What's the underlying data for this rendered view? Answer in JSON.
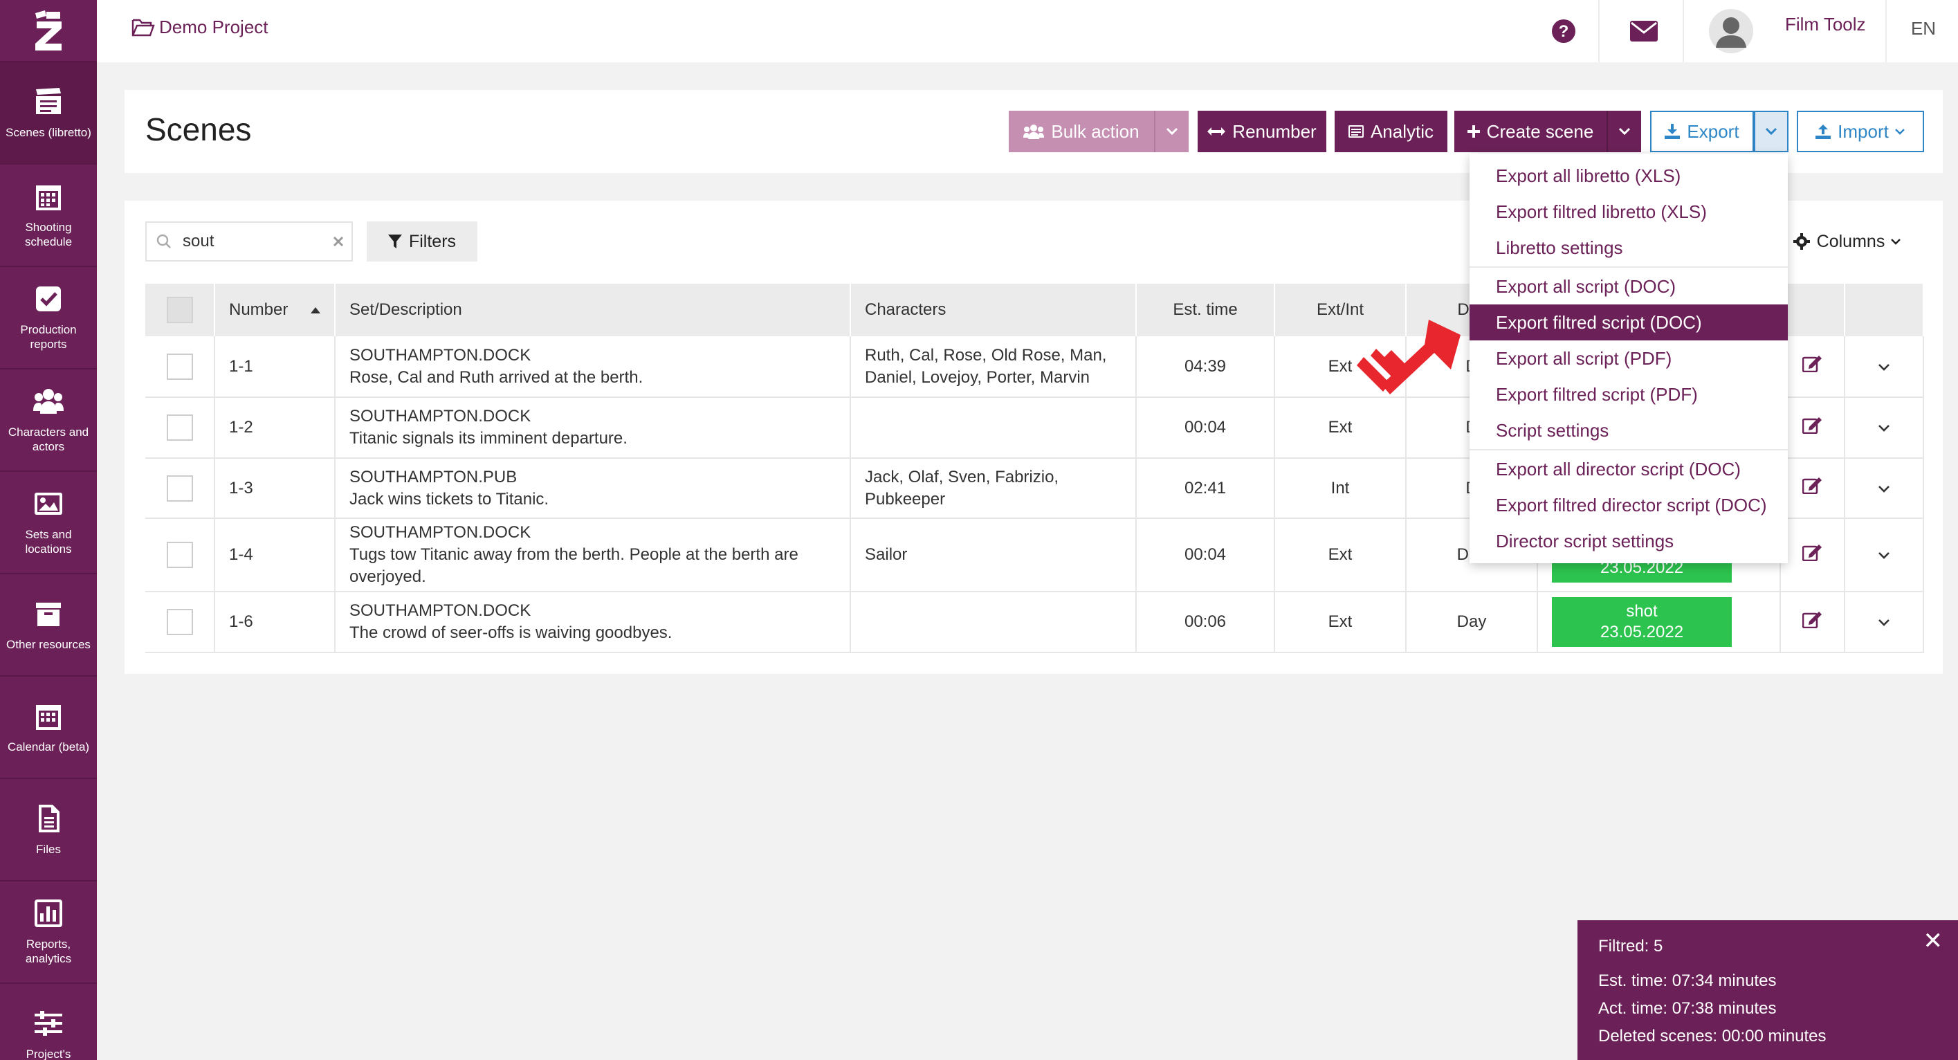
{
  "sidebar": {
    "logo": "Z",
    "items": [
      {
        "label": "Scenes (libretto)",
        "icon": "clapperboard-icon",
        "active": true
      },
      {
        "label": "Shooting schedule",
        "icon": "calendar-icon"
      },
      {
        "label": "Production reports",
        "icon": "checkbox-icon"
      },
      {
        "label": "Characters and actors",
        "icon": "users-icon"
      },
      {
        "label": "Sets and locations",
        "icon": "image-icon"
      },
      {
        "label": "Other resources",
        "icon": "archive-icon"
      },
      {
        "label": "Calendar (beta)",
        "icon": "calendar-icon"
      },
      {
        "label": "Files",
        "icon": "file-icon"
      },
      {
        "label": "Reports, analytics",
        "icon": "bar-chart-icon"
      },
      {
        "label": "Project's",
        "icon": "sliders-icon"
      }
    ]
  },
  "topbar": {
    "project": "Demo Project",
    "user": "Film Toolz",
    "lang": "EN",
    "help_icon": "question-circle-icon",
    "mail_icon": "envelope-icon"
  },
  "header": {
    "title": "Scenes",
    "bulk_action": "Bulk action",
    "renumber": "Renumber",
    "analytic": "Analytic",
    "create_scene": "Create scene",
    "export": "Export",
    "import": "Import"
  },
  "toolbar": {
    "search_value": "sout",
    "filters": "Filters",
    "columns": "Columns"
  },
  "table": {
    "headers": [
      "Number",
      "Set/Description",
      "Characters",
      "Est. time",
      "Ext/Int",
      "D/N"
    ],
    "rows": [
      {
        "number": "1-1",
        "set": "SOUTHAMPTON.DOCK",
        "desc": "Rose, Cal and Ruth arrived at the berth.",
        "characters": "Ruth, Cal, Rose, Old Rose, Man, Daniel, Lovejoy, Porter, Marvin",
        "est": "04:39",
        "extint": "Ext",
        "dn": "D",
        "status": "",
        "date": ""
      },
      {
        "number": "1-2",
        "set": "SOUTHAMPTON.DOCK",
        "desc": "Titanic signals its imminent departure.",
        "characters": "",
        "est": "00:04",
        "extint": "Ext",
        "dn": "D",
        "status": "",
        "date": ""
      },
      {
        "number": "1-3",
        "set": "SOUTHAMPTON.PUB",
        "desc": "Jack wins tickets to Titanic.",
        "characters": "Jack, Olaf, Sven, Fabrizio, Pubkeeper",
        "est": "02:41",
        "extint": "Int",
        "dn": "D",
        "status": "",
        "date": ""
      },
      {
        "number": "1-4",
        "set": "SOUTHAMPTON.DOCK",
        "desc": "Tugs tow Titanic away from the berth. People at the berth are overjoyed.",
        "characters": "Sailor",
        "est": "00:04",
        "extint": "Ext",
        "dn": "Day",
        "status": "",
        "date": "23.05.2022"
      },
      {
        "number": "1-6",
        "set": "SOUTHAMPTON.DOCK",
        "desc": "The crowd of seer-offs is waiving goodbyes.",
        "characters": "",
        "est": "00:06",
        "extint": "Ext",
        "dn": "Day",
        "status": "shot",
        "date": "23.05.2022"
      }
    ]
  },
  "export_menu": {
    "groups": [
      [
        "Export all libretto (XLS)",
        "Export filtred libretto (XLS)",
        "Libretto settings"
      ],
      [
        "Export all script (DOC)",
        "Export filtred script (DOC)",
        "Export all script (PDF)",
        "Export filtred script (PDF)",
        "Script settings"
      ],
      [
        "Export all director script (DOC)",
        "Export filtred director script (DOC)",
        "Director script settings"
      ]
    ],
    "active": "Export filtred script (DOC)"
  },
  "summary": {
    "filtred": "Filtred: 5",
    "est": "Est. time: 07:34 minutes",
    "act": "Act. time: 07:38 minutes",
    "deleted": "Deleted scenes: 00:00 minutes"
  },
  "colors": {
    "brand": "#6b2157",
    "brand_light": "#c58fb2",
    "export_blue": "#2e86c6",
    "shot_green": "#2cc44e",
    "pointer_red": "#e8262d"
  }
}
